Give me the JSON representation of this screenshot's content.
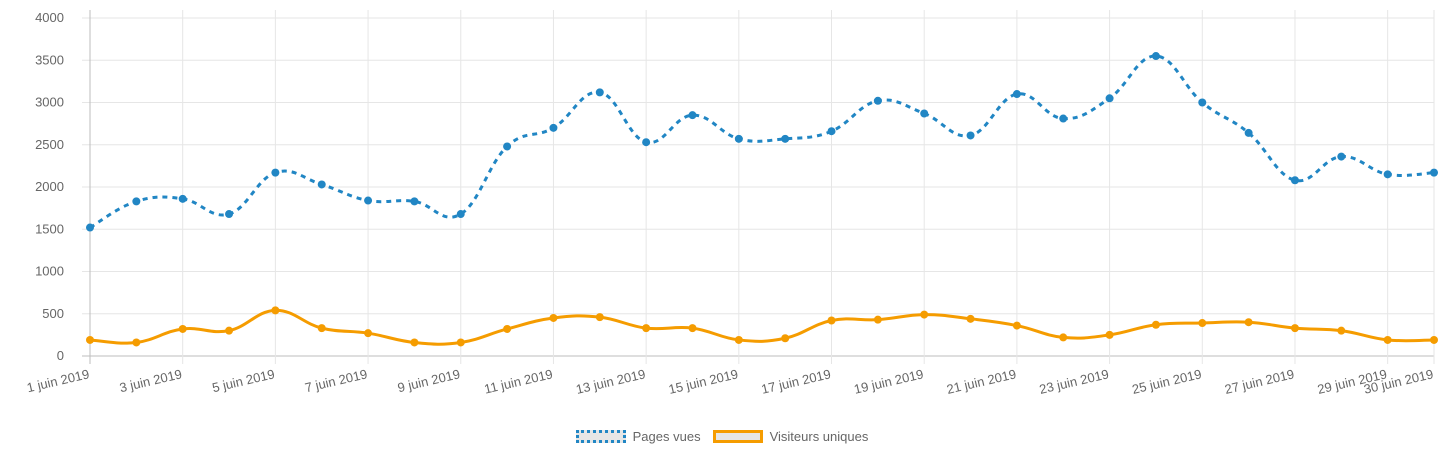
{
  "chart_data": {
    "type": "line",
    "categories": [
      "1 juin 2019",
      "2 juin 2019",
      "3 juin 2019",
      "4 juin 2019",
      "5 juin 2019",
      "6 juin 2019",
      "7 juin 2019",
      "8 juin 2019",
      "9 juin 2019",
      "10 juin 2019",
      "11 juin 2019",
      "12 juin 2019",
      "13 juin 2019",
      "14 juin 2019",
      "15 juin 2019",
      "16 juin 2019",
      "17 juin 2019",
      "18 juin 2019",
      "19 juin 2019",
      "20 juin 2019",
      "21 juin 2019",
      "22 juin 2019",
      "23 juin 2019",
      "24 juin 2019",
      "25 juin 2019",
      "26 juin 2019",
      "27 juin 2019",
      "28 juin 2019",
      "29 juin 2019",
      "30 juin 2019"
    ],
    "tick_labels": [
      "1 juin 2019",
      "3 juin 2019",
      "5 juin 2019",
      "7 juin 2019",
      "9 juin 2019",
      "11 juin 2019",
      "13 juin 2019",
      "15 juin 2019",
      "17 juin 2019",
      "19 juin 2019",
      "21 juin 2019",
      "23 juin 2019",
      "25 juin 2019",
      "27 juin 2019",
      "29 juin 2019",
      "30 juin 2019"
    ],
    "series": [
      {
        "name": "Pages vues",
        "color": "#2186c4",
        "dashed": true,
        "values": [
          1520,
          1830,
          1860,
          1680,
          2170,
          2030,
          1840,
          1830,
          1680,
          2480,
          2700,
          3120,
          2530,
          2850,
          2570,
          2570,
          2660,
          3020,
          2870,
          2610,
          3100,
          2810,
          3050,
          3550,
          3000,
          2640,
          2080,
          2360,
          2150,
          2170
        ]
      },
      {
        "name": "Visiteurs uniques",
        "color": "#f59c00",
        "dashed": false,
        "values": [
          190,
          160,
          320,
          300,
          540,
          330,
          270,
          160,
          160,
          320,
          450,
          460,
          330,
          330,
          190,
          210,
          420,
          430,
          490,
          440,
          360,
          220,
          250,
          370,
          390,
          400,
          330,
          300,
          190,
          190
        ]
      }
    ],
    "ylim": [
      0,
      4000
    ],
    "yticks": [
      0,
      500,
      1000,
      1500,
      2000,
      2500,
      3000,
      3500,
      4000
    ],
    "grid": true,
    "legend_position": "bottom"
  }
}
